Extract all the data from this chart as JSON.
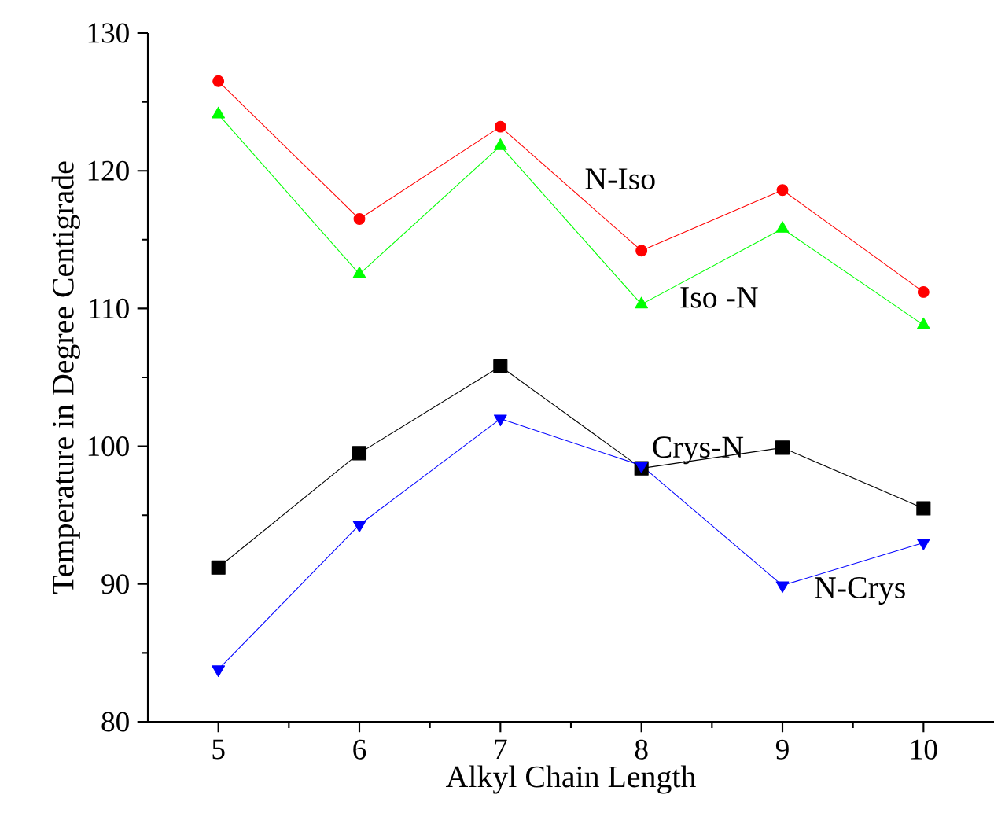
{
  "chart_data": {
    "type": "line",
    "xlabel": "Alkyl Chain Length",
    "ylabel": "Temperature in Degree Centigrade",
    "x": [
      5,
      6,
      7,
      8,
      9,
      10
    ],
    "series": [
      {
        "name": "N-Iso",
        "color": "#ff0000",
        "marker": "circle",
        "values": [
          126.5,
          116.5,
          123.2,
          114.2,
          118.6,
          111.2
        ]
      },
      {
        "name": "Iso -N",
        "color": "#00ff00",
        "marker": "triangle",
        "values": [
          124.1,
          112.5,
          121.8,
          110.3,
          115.8,
          108.8
        ]
      },
      {
        "name": "Crys-N",
        "color": "#000000",
        "marker": "square",
        "values": [
          91.2,
          99.5,
          105.8,
          98.4,
          99.9,
          95.5
        ]
      },
      {
        "name": "N-Crys",
        "color": "#0000ff",
        "marker": "triangle down",
        "values": [
          83.8,
          94.3,
          102.0,
          98.6,
          89.9,
          93.0
        ]
      }
    ],
    "xlim": [
      4.5,
      10.5
    ],
    "xticks": [
      5,
      6,
      7,
      8,
      9,
      10
    ],
    "ylim": [
      80,
      130
    ],
    "yticks": [
      80,
      90,
      100,
      110,
      120,
      130
    ],
    "grid": false,
    "legend": false,
    "line_style": "solid"
  }
}
